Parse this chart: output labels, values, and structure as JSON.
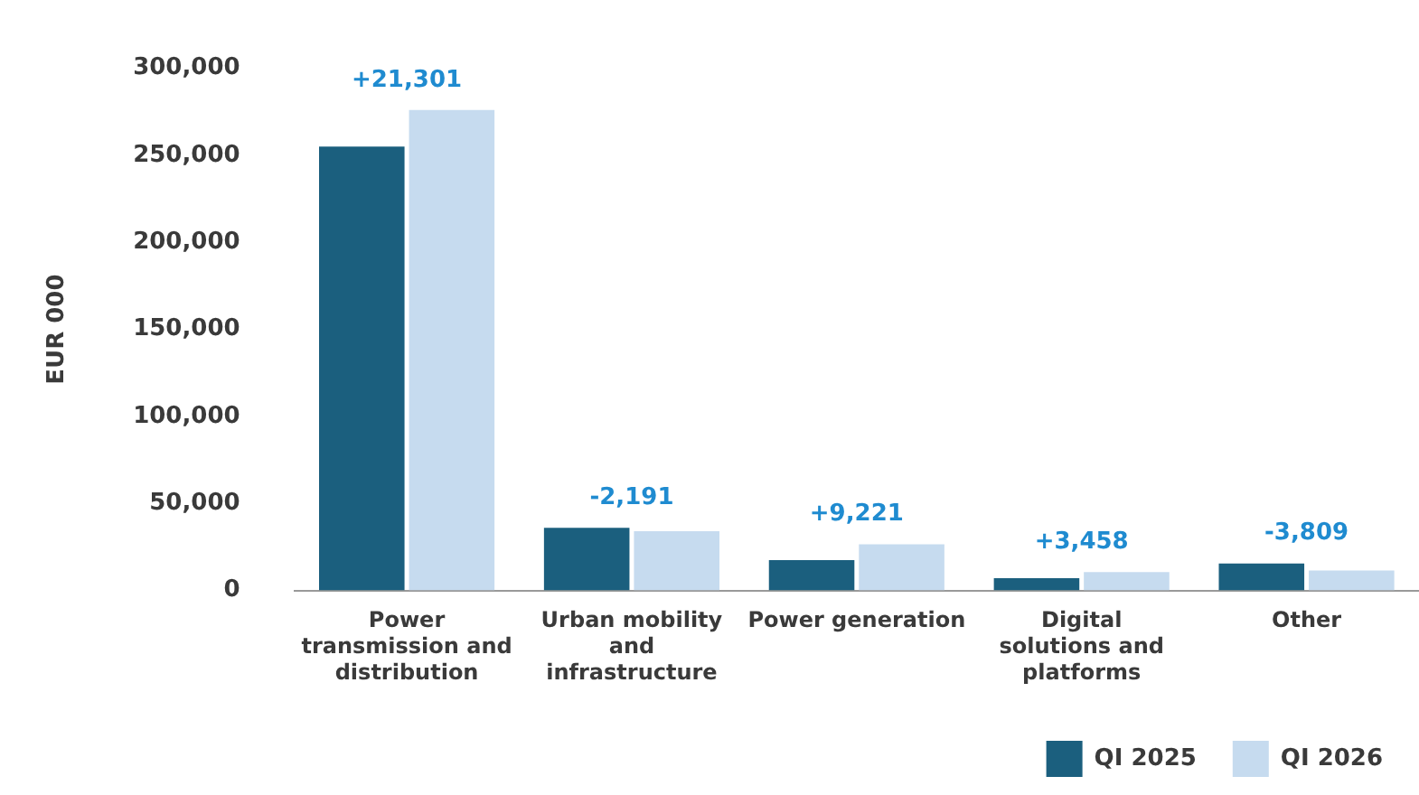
{
  "chart_data": {
    "type": "bar",
    "ylabel": "EUR 000",
    "categories": [
      "Power transmission and distribution",
      "Urban mobility and infrastructure",
      "Power generation",
      "Digital solutions and platforms",
      "Other"
    ],
    "series": [
      {
        "name": "QI 2025",
        "color": "#1b5f7e",
        "values": [
          255000,
          36000,
          17500,
          7000,
          15500
        ]
      },
      {
        "name": "QI 2026",
        "color": "#c6dbef",
        "values": [
          276000,
          34000,
          26500,
          10500,
          11500
        ]
      }
    ],
    "ylim": [
      0,
      300000
    ],
    "yticks": [
      0,
      {
        "value": 50000,
        "label": "50,000"
      },
      {
        "value": 100000,
        "label": "100,000"
      },
      {
        "value": 150000,
        "label": "150,000"
      },
      {
        "value": 200000,
        "label": "200,000"
      },
      {
        "value": 250000,
        "label": "250,000"
      },
      {
        "value": 300000,
        "label": "300,000"
      }
    ],
    "grid": false,
    "legend": "bottom",
    "annotations": [
      {
        "text": "+21,301",
        "x": "Power transmission and distribution",
        "y": 276000
      },
      {
        "text": "-2,191",
        "x": "Urban mobility and infrastructure",
        "y": 36000
      },
      {
        "text": "+9,221",
        "x": "Power generation",
        "y": 26500
      },
      {
        "text": "+3,458",
        "x": "Digital solutions and platforms",
        "y": 10500
      },
      {
        "text": "-3,809",
        "x": "Other",
        "y": 15500
      }
    ]
  }
}
